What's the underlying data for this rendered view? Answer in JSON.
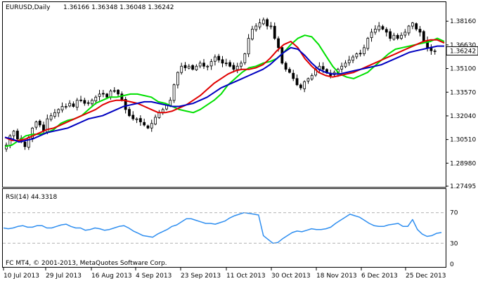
{
  "header": {
    "symbol": "EURUSD,Daily",
    "ohlc": "1.36166 1.36348 1.36048 1.36242"
  },
  "price_axis": {
    "labels": [
      "1.38160",
      "1.36630",
      "1.35100",
      "1.33570",
      "1.32040",
      "1.30510",
      "1.28980",
      "1.27495"
    ],
    "current_price": "1.36242"
  },
  "rsi_panel": {
    "title": "RSI(14) 44.3318",
    "levels": [
      "70",
      "30",
      "0"
    ],
    "footer": "FC MT4, © 2001-2013, MetaQuotes Software Corp."
  },
  "time_axis": {
    "labels": [
      "10 Jul 2013",
      "29 Jul 2013",
      "16 Aug 2013",
      "4 Sep 2013",
      "23 Sep 2013",
      "11 Oct 2013",
      "30 Oct 2013",
      "18 Nov 2013",
      "6 Dec 2013",
      "25 Dec 2013"
    ]
  },
  "colors": {
    "background": "#ffffff",
    "frame": "#000000",
    "candle": "#000000",
    "bull_body": "#ffffff",
    "ma_fast": "#00e000",
    "ma_mid": "#e00000",
    "ma_slow": "#0000c0",
    "rsi_line": "#2e8ef0",
    "level_line": "#b0b0b0",
    "price_tag_bg": "#ffffff"
  },
  "chart_data": {
    "type": "candlestick",
    "symbol": "EURUSD",
    "timeframe": "Daily",
    "ylim": [
      1.27495,
      1.3935
    ],
    "close": [
      1.3015,
      1.3075,
      1.3105,
      1.3055,
      1.3035,
      1.3005,
      1.3065,
      1.3125,
      1.3165,
      1.3145,
      1.3105,
      1.3185,
      1.3205,
      1.3225,
      1.3245,
      1.3265,
      1.3265,
      1.3285,
      1.3265,
      1.3305,
      1.3305,
      1.3285,
      1.3285,
      1.3305,
      1.3325,
      1.3345,
      1.3345,
      1.3325,
      1.3365,
      1.3365,
      1.3345,
      1.3305,
      1.3245,
      1.3205,
      1.3185,
      1.3185,
      1.3165,
      1.3145,
      1.3125,
      1.3155,
      1.3195,
      1.3225,
      1.3245,
      1.3275,
      1.3305,
      1.3405,
      1.3485,
      1.3525,
      1.3515,
      1.3525,
      1.3505,
      1.3525,
      1.3545,
      1.3525,
      1.3525,
      1.3555,
      1.3585,
      1.3565,
      1.3545,
      1.3545,
      1.3525,
      1.3505,
      1.3525,
      1.3545,
      1.3605,
      1.3705,
      1.3765,
      1.3785,
      1.3805,
      1.3825,
      1.3785,
      1.3785,
      1.3705,
      1.3645,
      1.3545,
      1.3505,
      1.3485,
      1.3445,
      1.3405,
      1.3385,
      1.3425,
      1.3445,
      1.3465,
      1.3505,
      1.3525,
      1.3505,
      1.3485,
      1.3465,
      1.3485,
      1.3505,
      1.3525,
      1.3545,
      1.3565,
      1.3585,
      1.3605,
      1.3605,
      1.3645,
      1.3705,
      1.3745,
      1.3765,
      1.3785,
      1.3765,
      1.3745,
      1.3705,
      1.3725,
      1.3705,
      1.3725,
      1.3745,
      1.3785,
      1.3805,
      1.3765,
      1.3745,
      1.3685,
      1.3645,
      1.3625,
      1.3624
    ],
    "series": [
      {
        "name": "",
        "color": "#00e000",
        "values": [
          1.3005,
          1.3015,
          1.3045,
          1.3075,
          1.3085,
          1.3085,
          1.3095,
          1.3115,
          1.3155,
          1.3175,
          1.3185,
          1.3205,
          1.3245,
          1.3285,
          1.3305,
          1.3325,
          1.3325,
          1.3335,
          1.3345,
          1.3345,
          1.3335,
          1.3325,
          1.3295,
          1.3285,
          1.3265,
          1.3245,
          1.3235,
          1.3225,
          1.3245,
          1.3275,
          1.3305,
          1.3345,
          1.3405,
          1.3445,
          1.3485,
          1.3515,
          1.3525,
          1.3545,
          1.3555,
          1.3575,
          1.3615,
          1.3665,
          1.3705,
          1.3725,
          1.3715,
          1.3665,
          1.3595,
          1.3525,
          1.3475,
          1.3455,
          1.3445,
          1.3465,
          1.3485,
          1.3525,
          1.3565,
          1.3605,
          1.3635,
          1.3645,
          1.3655,
          1.3665,
          1.3675,
          1.3685,
          1.3705,
          1.3685
        ]
      },
      {
        "name": "",
        "color": "#e00000",
        "values": [
          1.3065,
          1.3045,
          1.3045,
          1.3055,
          1.3075,
          1.3095,
          1.3115,
          1.3125,
          1.3145,
          1.3165,
          1.3185,
          1.3205,
          1.3225,
          1.3245,
          1.3275,
          1.3295,
          1.3305,
          1.3305,
          1.3295,
          1.3285,
          1.3265,
          1.3245,
          1.3225,
          1.3225,
          1.3235,
          1.3255,
          1.3275,
          1.3305,
          1.3335,
          1.3375,
          1.3415,
          1.3445,
          1.3475,
          1.3495,
          1.3505,
          1.3505,
          1.3515,
          1.3535,
          1.3575,
          1.3625,
          1.3665,
          1.3685,
          1.3645,
          1.3575,
          1.3525,
          1.3485,
          1.3465,
          1.3455,
          1.3465,
          1.3475,
          1.3485,
          1.3505,
          1.3525,
          1.3545,
          1.3565,
          1.3585,
          1.3605,
          1.3625,
          1.3645,
          1.3665,
          1.3685,
          1.3695,
          1.3695,
          1.3675
        ]
      },
      {
        "name": "",
        "color": "#0000c0",
        "values": [
          1.3065,
          1.3055,
          1.3035,
          1.3045,
          1.3055,
          1.3075,
          1.3095,
          1.3105,
          1.3115,
          1.3125,
          1.3145,
          1.3165,
          1.3185,
          1.3195,
          1.3205,
          1.3225,
          1.3245,
          1.3265,
          1.3275,
          1.3285,
          1.3295,
          1.3295,
          1.3285,
          1.3275,
          1.3265,
          1.3265,
          1.3275,
          1.3285,
          1.3305,
          1.3325,
          1.3355,
          1.3385,
          1.3405,
          1.3425,
          1.3445,
          1.3465,
          1.3485,
          1.3505,
          1.3535,
          1.3575,
          1.3615,
          1.3645,
          1.3635,
          1.3595,
          1.3545,
          1.3505,
          1.3485,
          1.3475,
          1.3475,
          1.3485,
          1.3495,
          1.3505,
          1.3515,
          1.3525,
          1.3535,
          1.3555,
          1.3575,
          1.3595,
          1.3615,
          1.3625,
          1.3635,
          1.3645,
          1.3655,
          1.3655
        ]
      },
      {
        "name": "",
        "color": "#2e8ef0",
        "values": [
          50,
          49,
          50,
          52,
          53,
          51,
          51,
          53,
          53,
          50,
          50,
          52,
          54,
          55,
          52,
          50,
          50,
          47,
          48,
          50,
          49,
          47,
          48,
          50,
          52,
          53,
          50,
          46,
          43,
          40,
          39,
          38,
          42,
          45,
          48,
          52,
          54,
          58,
          62,
          62,
          60,
          58,
          56,
          56,
          55,
          57,
          59,
          63,
          66,
          68,
          70,
          69,
          68,
          67,
          40,
          35,
          30,
          31,
          36,
          40,
          44,
          46,
          45,
          47,
          49,
          48,
          48,
          49,
          51,
          56,
          60,
          64,
          68,
          66,
          64,
          60,
          56,
          53,
          52,
          52,
          54,
          55,
          56,
          52,
          52,
          61,
          48,
          42,
          39,
          40,
          43,
          44
        ]
      }
    ],
    "rsi": {
      "period": 14,
      "last": 44.3318,
      "levels": [
        70,
        30
      ],
      "ylim": [
        0,
        100
      ]
    },
    "x_tick_labels": [
      "10 Jul 2013",
      "29 Jul 2013",
      "16 Aug 2013",
      "4 Sep 2013",
      "23 Sep 2013",
      "11 Oct 2013",
      "30 Oct 2013",
      "18 Nov 2013",
      "6 Dec 2013",
      "25 Dec 2013"
    ],
    "y_tick_labels": [
      "1.38160",
      "1.36630",
      "1.35100",
      "1.33570",
      "1.32040",
      "1.30510",
      "1.28980",
      "1.27495"
    ],
    "grid": false,
    "legend": "none"
  }
}
